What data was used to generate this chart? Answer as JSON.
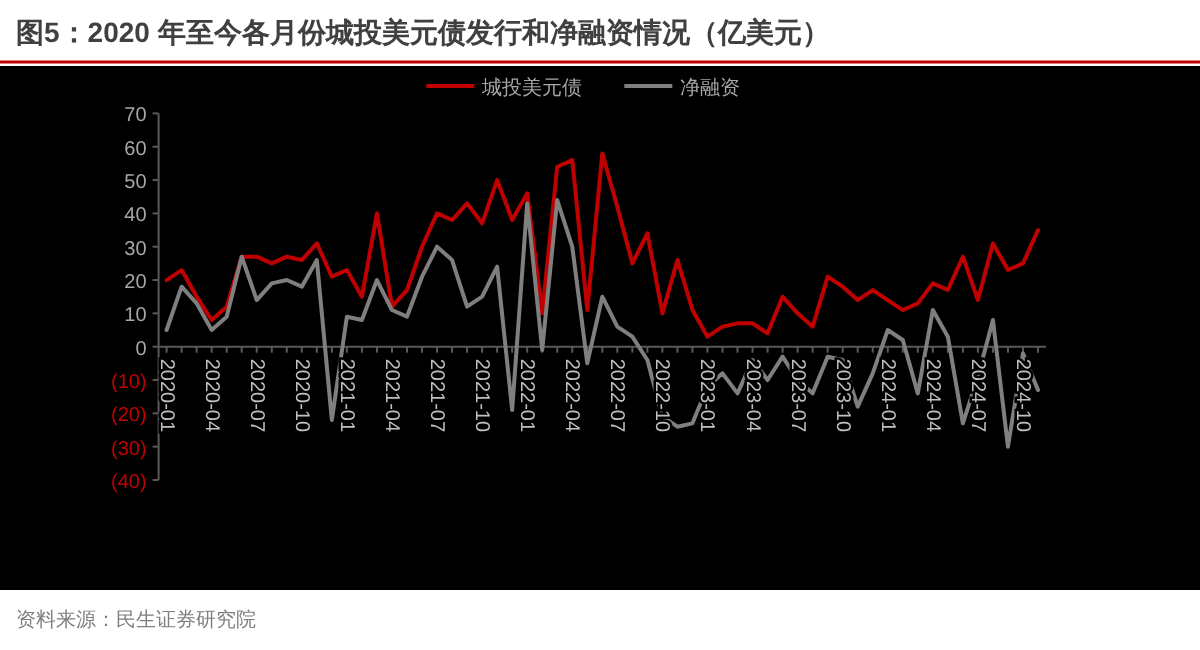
{
  "chart_data": {
    "type": "line",
    "title": "图5：2020 年至今各月份城投美元债发行和净融资情况（亿美元）",
    "categories": [
      "2020-01",
      null,
      null,
      "2020-04",
      null,
      null,
      "2020-07",
      null,
      null,
      "2020-10",
      null,
      null,
      "2021-01",
      null,
      null,
      "2021-04",
      null,
      null,
      "2021-07",
      null,
      null,
      "2021-10",
      null,
      null,
      "2022-01",
      null,
      null,
      "2022-04",
      null,
      null,
      "2022-07",
      null,
      null,
      "2022-10",
      null,
      null,
      "2023-01",
      null,
      null,
      "2023-04",
      null,
      null,
      "2023-07",
      null,
      null,
      "2023-10",
      null,
      null,
      "2024-01",
      null,
      null,
      "2024-04",
      null,
      null,
      "2024-07",
      null,
      null,
      "2024-10",
      null
    ],
    "series": [
      {
        "name": "城投美元债",
        "color": "#c00000",
        "values": [
          20,
          23,
          15,
          8,
          12,
          27,
          27,
          25,
          27,
          26,
          31,
          21,
          23,
          15,
          40,
          12,
          17,
          30,
          40,
          38,
          43,
          37,
          50,
          38,
          46,
          10,
          54,
          56,
          11,
          58,
          42,
          25,
          34,
          10,
          26,
          11,
          3,
          6,
          7,
          7,
          4,
          15,
          10,
          6,
          21,
          18,
          14,
          17,
          14,
          11,
          13,
          19,
          17,
          27,
          14,
          31,
          23,
          25,
          35
        ]
      },
      {
        "name": "净融资",
        "color": "#7f7f7f",
        "values": [
          5,
          18,
          13,
          5,
          9,
          27,
          14,
          19,
          20,
          18,
          26,
          -22,
          9,
          8,
          20,
          11,
          9,
          21,
          30,
          26,
          12,
          15,
          24,
          -19,
          43,
          -1,
          44,
          30,
          -5,
          15,
          6,
          3,
          -4,
          -21,
          -24,
          -23,
          -12,
          -8,
          -14,
          -4,
          -10,
          -3,
          -10,
          -14,
          -3,
          -4,
          -18,
          -8,
          5,
          2,
          -14,
          11,
          3,
          -23,
          -9,
          8,
          -30,
          -2,
          -13
        ]
      }
    ],
    "ylim": [
      -40,
      70
    ],
    "yticks": [
      70,
      60,
      50,
      40,
      30,
      20,
      10,
      0,
      {
        "value": -10,
        "label": "(10)"
      },
      {
        "value": -20,
        "label": "(20)"
      },
      {
        "value": -30,
        "label": "(30)"
      },
      {
        "value": -40,
        "label": "(40)"
      }
    ],
    "legend": "top",
    "grid": false,
    "marker": "none",
    "line_style": "solid",
    "annotations": [
      "资料来源：民生证券研究院"
    ]
  }
}
